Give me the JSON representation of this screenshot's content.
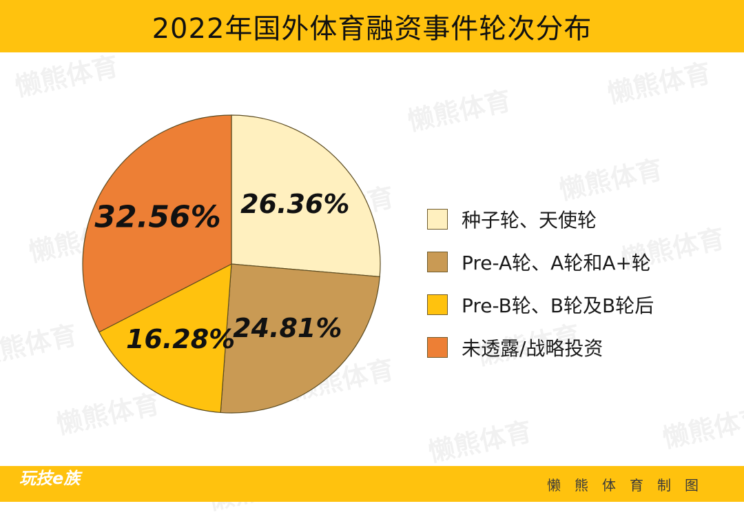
{
  "header": {
    "title": "2022年国外体育融资事件轮次分布"
  },
  "footer": {
    "brand": "玩技e族",
    "credit": "懒熊体育制图"
  },
  "watermark": {
    "text": "懒熊体育"
  },
  "chart_data": {
    "type": "pie",
    "title": "2022年国外体育融资事件轮次分布",
    "slices": [
      {
        "label": "种子轮、天使轮",
        "value": 26.36,
        "display": "26.36%",
        "color": "#FFF0BF"
      },
      {
        "label": "Pre-A轮、A轮和A+轮",
        "value": 24.81,
        "display": "24.81%",
        "color": "#C99A54"
      },
      {
        "label": "Pre-B轮、B轮及B轮后",
        "value": 16.28,
        "display": "16.28%",
        "color": "#FFC20E"
      },
      {
        "label": "未透露/战略投资",
        "value": 32.56,
        "display": "32.56%",
        "color": "#ED7F35"
      }
    ],
    "legend_position": "right"
  }
}
